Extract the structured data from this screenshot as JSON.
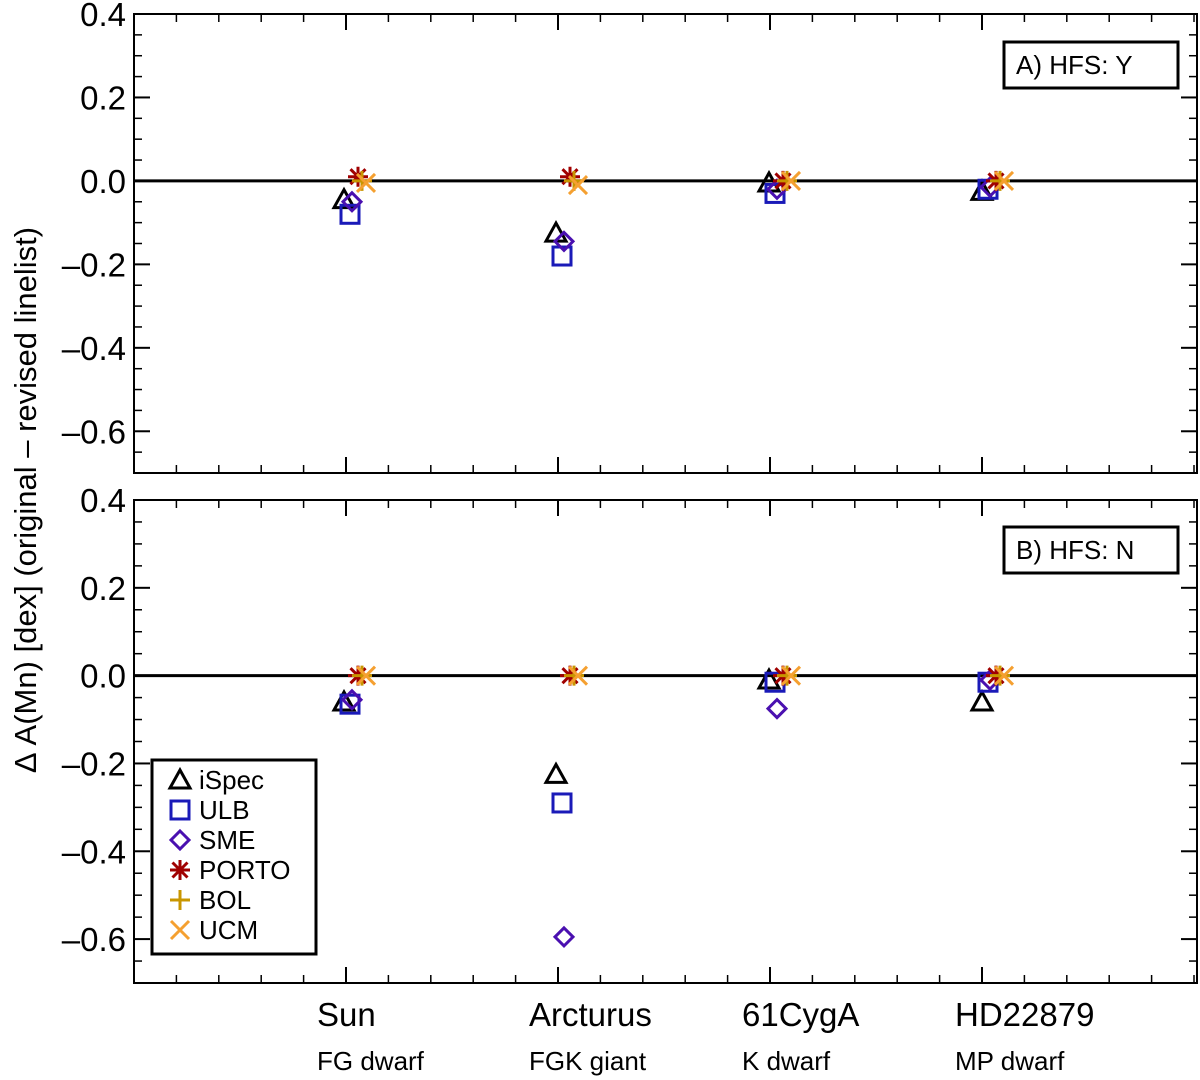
{
  "chart_data": {
    "type": "scatter",
    "ylabel": "Δ A(Mn) [dex] (original – revised linelist)",
    "ylim": [
      -0.7,
      0.4
    ],
    "yticks": [
      0.4,
      0.2,
      0.0,
      -0.2,
      -0.4,
      -0.6
    ],
    "ytick_labels": [
      "0.4",
      "0.2",
      "0.0",
      "–0.2",
      "–0.4",
      "–0.6"
    ],
    "stars": [
      {
        "name": "Sun",
        "type": "FG dwarf"
      },
      {
        "name": "Arcturus",
        "type": "FGK giant"
      },
      {
        "name": "61CygA",
        "type": "K dwarf"
      },
      {
        "name": "HD22879",
        "type": "MP dwarf"
      }
    ],
    "legend": [
      {
        "name": "iSpec",
        "marker": "triangle",
        "color": "#000000"
      },
      {
        "name": "ULB",
        "marker": "square",
        "color": "#1a1ab8"
      },
      {
        "name": "SME",
        "marker": "diamond",
        "color": "#4a10b0"
      },
      {
        "name": "PORTO",
        "marker": "asterisk",
        "color": "#a00000"
      },
      {
        "name": "BOL",
        "marker": "plus",
        "color": "#c89600"
      },
      {
        "name": "UCM",
        "marker": "cross",
        "color": "#f5a030"
      }
    ],
    "panels": [
      {
        "label": "A) HFS: Y",
        "series": [
          {
            "name": "iSpec",
            "values": [
              -0.045,
              -0.125,
              -0.005,
              -0.025
            ]
          },
          {
            "name": "ULB",
            "values": [
              -0.08,
              -0.18,
              -0.03,
              -0.02
            ]
          },
          {
            "name": "SME",
            "values": [
              -0.05,
              -0.145,
              -0.02,
              -0.015
            ]
          },
          {
            "name": "PORTO",
            "values": [
              0.01,
              0.01,
              0.0,
              0.0
            ]
          },
          {
            "name": "BOL",
            "values": [
              0.0,
              0.0,
              0.0,
              0.0
            ]
          },
          {
            "name": "UCM",
            "values": [
              -0.005,
              -0.01,
              0.0,
              0.0
            ]
          }
        ]
      },
      {
        "label": "B) HFS: N",
        "series": [
          {
            "name": "iSpec",
            "values": [
              -0.06,
              -0.225,
              -0.01,
              -0.06
            ]
          },
          {
            "name": "ULB",
            "values": [
              -0.065,
              -0.29,
              -0.015,
              -0.015
            ]
          },
          {
            "name": "SME",
            "values": [
              -0.055,
              -0.595,
              -0.075,
              -0.01
            ]
          },
          {
            "name": "PORTO",
            "values": [
              0.0,
              0.0,
              0.0,
              0.0
            ]
          },
          {
            "name": "BOL",
            "values": [
              0.0,
              0.0,
              0.0,
              0.0
            ]
          },
          {
            "name": "UCM",
            "values": [
              0.0,
              0.0,
              0.0,
              0.0
            ]
          }
        ]
      }
    ]
  }
}
